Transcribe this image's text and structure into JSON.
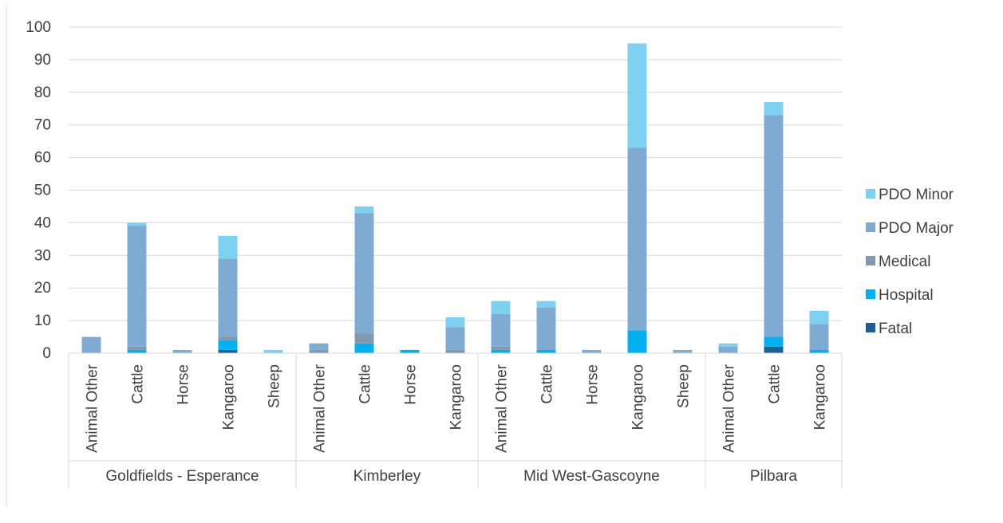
{
  "chart_data": {
    "type": "bar",
    "stacked": true,
    "groups": [
      {
        "name": "Goldfields - Esperance",
        "categories": [
          "Animal Other",
          "Cattle",
          "Horse",
          "Kangaroo",
          "Sheep"
        ]
      },
      {
        "name": "Kimberley",
        "categories": [
          "Animal Other",
          "Cattle",
          "Horse",
          "Kangaroo"
        ]
      },
      {
        "name": "Mid West-Gascoyne",
        "categories": [
          "Animal Other",
          "Cattle",
          "Horse",
          "Kangaroo",
          "Sheep"
        ]
      },
      {
        "name": "Pilbara",
        "categories": [
          "Animal Other",
          "Cattle",
          "Kangaroo"
        ]
      }
    ],
    "series": [
      {
        "name": "Fatal",
        "color": "#1f5f95",
        "values": [
          0,
          0,
          0,
          1,
          0,
          0,
          0,
          0,
          0,
          0,
          0,
          0,
          0,
          0,
          0,
          2,
          0
        ]
      },
      {
        "name": "Hospital",
        "color": "#00b0f0",
        "values": [
          0,
          1,
          0,
          3,
          0,
          0,
          3,
          1,
          0,
          1,
          1,
          0,
          7,
          0,
          0,
          3,
          1
        ]
      },
      {
        "name": "Medical",
        "color": "#8497b0",
        "values": [
          0,
          1,
          0,
          1,
          0,
          1,
          3,
          0,
          1,
          1,
          0,
          0,
          0,
          0,
          0,
          0,
          0
        ]
      },
      {
        "name": "PDO Major",
        "color": "#7fabd2",
        "values": [
          5,
          37,
          1,
          24,
          0,
          2,
          37,
          0,
          7,
          10,
          13,
          1,
          56,
          1,
          2,
          68,
          8
        ]
      },
      {
        "name": "PDO Minor",
        "color": "#7dd0ef",
        "values": [
          0,
          1,
          0,
          7,
          1,
          0,
          2,
          0,
          3,
          4,
          2,
          0,
          32,
          0,
          1,
          4,
          4
        ]
      }
    ],
    "ylim": [
      0,
      100
    ],
    "yticks": [
      0,
      10,
      20,
      30,
      40,
      50,
      60,
      70,
      80,
      90,
      100
    ],
    "grid": true,
    "legend_position": "right"
  }
}
